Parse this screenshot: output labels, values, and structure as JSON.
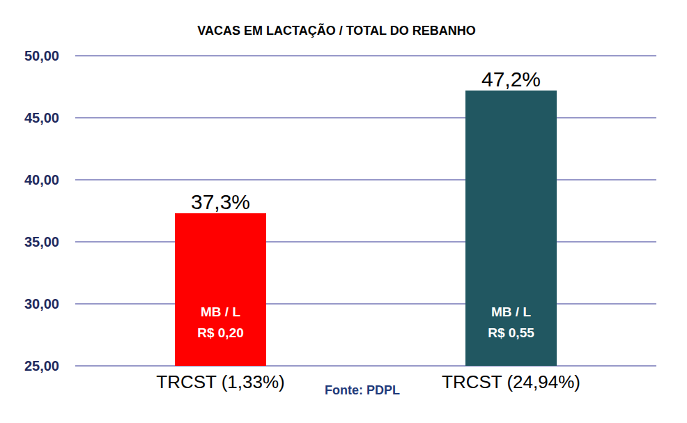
{
  "chart_data": {
    "type": "bar",
    "title": "VACAS EM LACTAÇÃO / TOTAL DO REBANHO",
    "categories": [
      "TRCST (1,33%)",
      "TRCST (24,94%)"
    ],
    "values": [
      37.3,
      47.2
    ],
    "value_labels": [
      "37,3%",
      "47,2%"
    ],
    "colors": [
      "#ff0000",
      "#215761"
    ],
    "inner_labels": [
      {
        "line1": "MB / L",
        "line2": "R$ 0,20"
      },
      {
        "line1": "MB / L",
        "line2": "R$ 0,55"
      }
    ],
    "source": "Fonte: PDPL",
    "ylim": [
      25,
      50
    ],
    "yticks": [
      {
        "value": 25,
        "label": "25,00"
      },
      {
        "value": 30,
        "label": "30,00"
      },
      {
        "value": 35,
        "label": "35,00"
      },
      {
        "value": 40,
        "label": "40,00"
      },
      {
        "value": 45,
        "label": "45,00"
      },
      {
        "value": 50,
        "label": "50,00"
      }
    ],
    "grid": true,
    "data_labels": true
  }
}
